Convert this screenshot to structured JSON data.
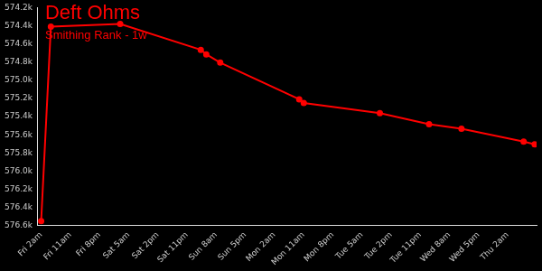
{
  "chart_data": {
    "type": "line",
    "title": "Deft Ohms",
    "subtitle": "Smithing Rank - 1w",
    "x": [
      0,
      3,
      24.4,
      49.3,
      51,
      55.3,
      79.7,
      81.1,
      104.6,
      119.8,
      129.8,
      149,
      152.4
    ],
    "values": [
      576550,
      574410,
      574380,
      574665,
      574715,
      574806,
      575210,
      575250,
      575362,
      575483,
      575533,
      575675,
      575705
    ],
    "color": "#ff0000",
    "marker": "circle",
    "line_style": "solid",
    "grid": false,
    "xlim": [
      -1,
      153
    ],
    "xticks": [
      {
        "value": 0,
        "label": "Fri 2am"
      },
      {
        "value": 9,
        "label": "Fri 11am"
      },
      {
        "value": 18,
        "label": "Fri 8pm"
      },
      {
        "value": 27,
        "label": "Sat 5am"
      },
      {
        "value": 36,
        "label": "Sat 2pm"
      },
      {
        "value": 45,
        "label": "Sat 11pm"
      },
      {
        "value": 54,
        "label": "Sun 8am"
      },
      {
        "value": 63,
        "label": "Sun 5pm"
      },
      {
        "value": 72,
        "label": "Mon 2am"
      },
      {
        "value": 81,
        "label": "Mon 11am"
      },
      {
        "value": 90,
        "label": "Mon 8pm"
      },
      {
        "value": 99,
        "label": "Tue 5am"
      },
      {
        "value": 108,
        "label": "Tue 2pm"
      },
      {
        "value": 117,
        "label": "Tue 11pm"
      },
      {
        "value": 126,
        "label": "Wed 8am"
      },
      {
        "value": 135,
        "label": "Wed 5pm"
      },
      {
        "value": 144,
        "label": "Thu 2am"
      }
    ],
    "ylim": [
      576600,
      574200
    ],
    "yticks": [
      {
        "value": 574200,
        "label": "574.2k"
      },
      {
        "value": 574400,
        "label": "574.4k"
      },
      {
        "value": 574600,
        "label": "574.6k"
      },
      {
        "value": 574800,
        "label": "574.8k"
      },
      {
        "value": 575000,
        "label": "575.0k"
      },
      {
        "value": 575200,
        "label": "575.2k"
      },
      {
        "value": 575400,
        "label": "575.4k"
      },
      {
        "value": 575600,
        "label": "575.6k"
      },
      {
        "value": 575800,
        "label": "575.8k"
      },
      {
        "value": 576000,
        "label": "576.0k"
      },
      {
        "value": 576200,
        "label": "576.2k"
      },
      {
        "value": 576400,
        "label": "576.4k"
      },
      {
        "value": 576600,
        "label": "576.6k"
      }
    ]
  }
}
